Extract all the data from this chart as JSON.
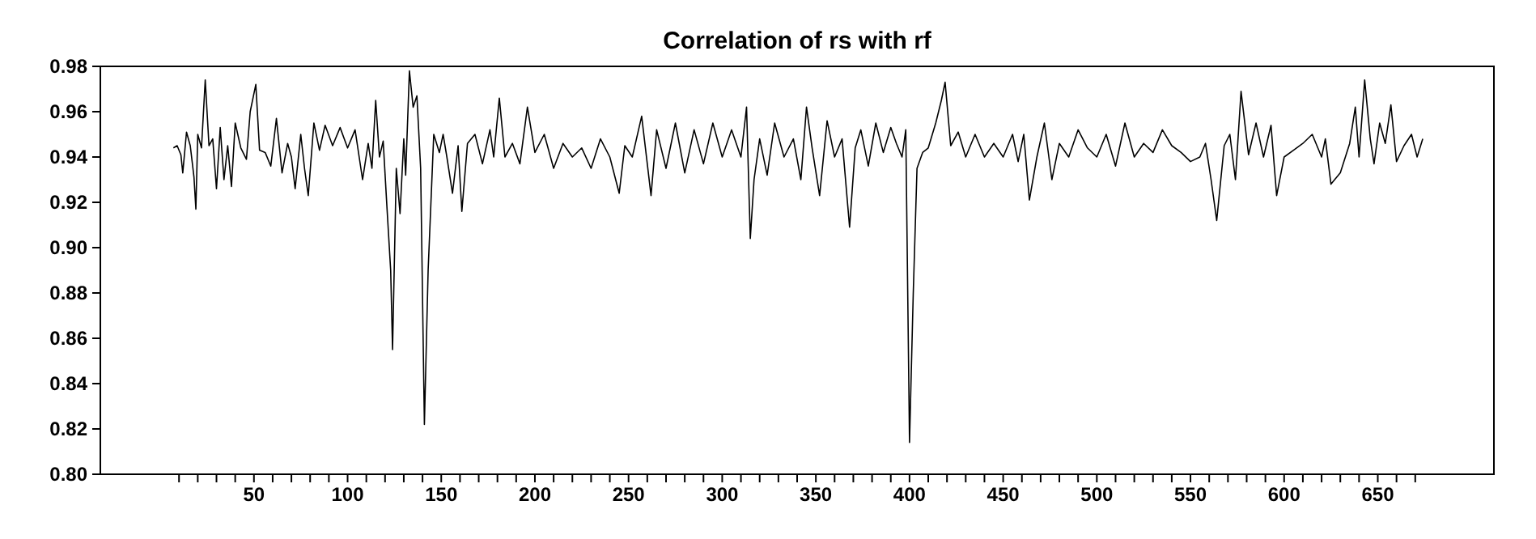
{
  "chart_data": {
    "type": "line",
    "title": "Correlation of rs with rf",
    "x": [
      7,
      9,
      11,
      12,
      14,
      16,
      18,
      19,
      20,
      22,
      24,
      26,
      28,
      30,
      32,
      34,
      36,
      38,
      40,
      43,
      46,
      48,
      51,
      53,
      56,
      59,
      62,
      65,
      68,
      70,
      72,
      75,
      77,
      79,
      82,
      85,
      88,
      92,
      96,
      100,
      104,
      108,
      111,
      113,
      115,
      117,
      119,
      121,
      123,
      124,
      126,
      128,
      130,
      131,
      133,
      135,
      137,
      139,
      141,
      143,
      146,
      149,
      151,
      153,
      156,
      159,
      161,
      164,
      168,
      172,
      176,
      178,
      181,
      184,
      188,
      192,
      196,
      200,
      205,
      210,
      215,
      220,
      225,
      230,
      235,
      240,
      245,
      248,
      252,
      257,
      262,
      265,
      270,
      275,
      280,
      285,
      290,
      295,
      300,
      305,
      310,
      313,
      315,
      317,
      320,
      324,
      328,
      333,
      338,
      342,
      345,
      348,
      352,
      356,
      360,
      364,
      368,
      371,
      374,
      378,
      382,
      386,
      390,
      393,
      396,
      398,
      400,
      402,
      404,
      407,
      410,
      414,
      417,
      419,
      422,
      426,
      430,
      435,
      440,
      445,
      450,
      455,
      458,
      461,
      464,
      468,
      472,
      476,
      480,
      485,
      490,
      495,
      500,
      505,
      510,
      515,
      520,
      525,
      530,
      535,
      540,
      545,
      550,
      555,
      558,
      561,
      564,
      568,
      571,
      574,
      577,
      581,
      585,
      589,
      593,
      596,
      600,
      605,
      610,
      615,
      620,
      622,
      625,
      630,
      635,
      638,
      640,
      643,
      646,
      648,
      651,
      654,
      657,
      660,
      664,
      668,
      671,
      674
    ],
    "values": [
      0.944,
      0.945,
      0.941,
      0.933,
      0.951,
      0.945,
      0.931,
      0.917,
      0.95,
      0.944,
      0.974,
      0.945,
      0.948,
      0.926,
      0.953,
      0.93,
      0.945,
      0.927,
      0.955,
      0.944,
      0.939,
      0.96,
      0.972,
      0.943,
      0.942,
      0.936,
      0.957,
      0.933,
      0.946,
      0.94,
      0.926,
      0.95,
      0.935,
      0.923,
      0.955,
      0.943,
      0.954,
      0.945,
      0.953,
      0.944,
      0.952,
      0.93,
      0.946,
      0.935,
      0.965,
      0.94,
      0.947,
      0.918,
      0.89,
      0.855,
      0.935,
      0.915,
      0.948,
      0.932,
      0.978,
      0.962,
      0.967,
      0.935,
      0.822,
      0.89,
      0.95,
      0.942,
      0.95,
      0.94,
      0.924,
      0.945,
      0.916,
      0.946,
      0.95,
      0.937,
      0.952,
      0.94,
      0.966,
      0.94,
      0.946,
      0.937,
      0.962,
      0.942,
      0.95,
      0.935,
      0.946,
      0.94,
      0.944,
      0.935,
      0.948,
      0.94,
      0.924,
      0.945,
      0.94,
      0.958,
      0.923,
      0.952,
      0.935,
      0.955,
      0.933,
      0.952,
      0.937,
      0.955,
      0.94,
      0.952,
      0.94,
      0.962,
      0.904,
      0.93,
      0.948,
      0.932,
      0.955,
      0.94,
      0.948,
      0.93,
      0.962,
      0.944,
      0.923,
      0.956,
      0.94,
      0.948,
      0.909,
      0.944,
      0.952,
      0.936,
      0.955,
      0.942,
      0.953,
      0.946,
      0.94,
      0.952,
      0.814,
      0.88,
      0.935,
      0.942,
      0.944,
      0.955,
      0.965,
      0.973,
      0.945,
      0.951,
      0.94,
      0.95,
      0.94,
      0.946,
      0.94,
      0.95,
      0.938,
      0.95,
      0.921,
      0.94,
      0.955,
      0.93,
      0.946,
      0.94,
      0.952,
      0.944,
      0.94,
      0.95,
      0.936,
      0.955,
      0.94,
      0.946,
      0.942,
      0.952,
      0.945,
      0.942,
      0.938,
      0.94,
      0.946,
      0.93,
      0.912,
      0.945,
      0.95,
      0.93,
      0.969,
      0.941,
      0.955,
      0.94,
      0.954,
      0.923,
      0.94,
      0.943,
      0.946,
      0.95,
      0.94,
      0.948,
      0.928,
      0.933,
      0.946,
      0.962,
      0.94,
      0.974,
      0.948,
      0.937,
      0.955,
      0.946,
      0.963,
      0.938,
      0.945,
      0.95,
      0.94,
      0.948
    ],
    "xlim": [
      -32,
      712
    ],
    "ylim": [
      0.8,
      0.98
    ],
    "yticks": [
      {
        "value": 0.8,
        "label": "0.80"
      },
      0.82,
      0.84,
      0.86,
      0.88,
      {
        "value": 0.9,
        "label": "0.90"
      },
      0.92,
      0.94,
      0.96,
      0.98
    ],
    "xticks": [
      {
        "value": 10,
        "label": null
      },
      {
        "value": 20,
        "label": null
      },
      {
        "value": 30,
        "label": null
      },
      {
        "value": 40,
        "label": null
      },
      50,
      {
        "value": 60,
        "label": null
      },
      {
        "value": 70,
        "label": null
      },
      {
        "value": 80,
        "label": null
      },
      {
        "value": 90,
        "label": null
      },
      100,
      {
        "value": 110,
        "label": null
      },
      {
        "value": 120,
        "label": null
      },
      {
        "value": 130,
        "label": null
      },
      {
        "value": 140,
        "label": null
      },
      150,
      {
        "value": 160,
        "label": null
      },
      {
        "value": 170,
        "label": null
      },
      {
        "value": 180,
        "label": null
      },
      {
        "value": 190,
        "label": null
      },
      200,
      {
        "value": 210,
        "label": null
      },
      {
        "value": 220,
        "label": null
      },
      {
        "value": 230,
        "label": null
      },
      {
        "value": 240,
        "label": null
      },
      250,
      {
        "value": 260,
        "label": null
      },
      {
        "value": 270,
        "label": null
      },
      {
        "value": 280,
        "label": null
      },
      {
        "value": 290,
        "label": null
      },
      300,
      {
        "value": 310,
        "label": null
      },
      {
        "value": 320,
        "label": null
      },
      {
        "value": 330,
        "label": null
      },
      {
        "value": 340,
        "label": null
      },
      350,
      {
        "value": 360,
        "label": null
      },
      {
        "value": 370,
        "label": null
      },
      {
        "value": 380,
        "label": null
      },
      {
        "value": 390,
        "label": null
      },
      400,
      {
        "value": 410,
        "label": null
      },
      {
        "value": 420,
        "label": null
      },
      {
        "value": 430,
        "label": null
      },
      {
        "value": 440,
        "label": null
      },
      450,
      {
        "value": 460,
        "label": null
      },
      {
        "value": 470,
        "label": null
      },
      {
        "value": 480,
        "label": null
      },
      {
        "value": 490,
        "label": null
      },
      500,
      {
        "value": 510,
        "label": null
      },
      {
        "value": 520,
        "label": null
      },
      {
        "value": 530,
        "label": null
      },
      {
        "value": 540,
        "label": null
      },
      550,
      {
        "value": 560,
        "label": null
      },
      {
        "value": 570,
        "label": null
      },
      {
        "value": 580,
        "label": null
      },
      {
        "value": 590,
        "label": null
      },
      600,
      {
        "value": 610,
        "label": null
      },
      {
        "value": 620,
        "label": null
      },
      {
        "value": 630,
        "label": null
      },
      {
        "value": 640,
        "label": null
      },
      650,
      {
        "value": 660,
        "label": null
      },
      {
        "value": 670,
        "label": null
      }
    ]
  }
}
